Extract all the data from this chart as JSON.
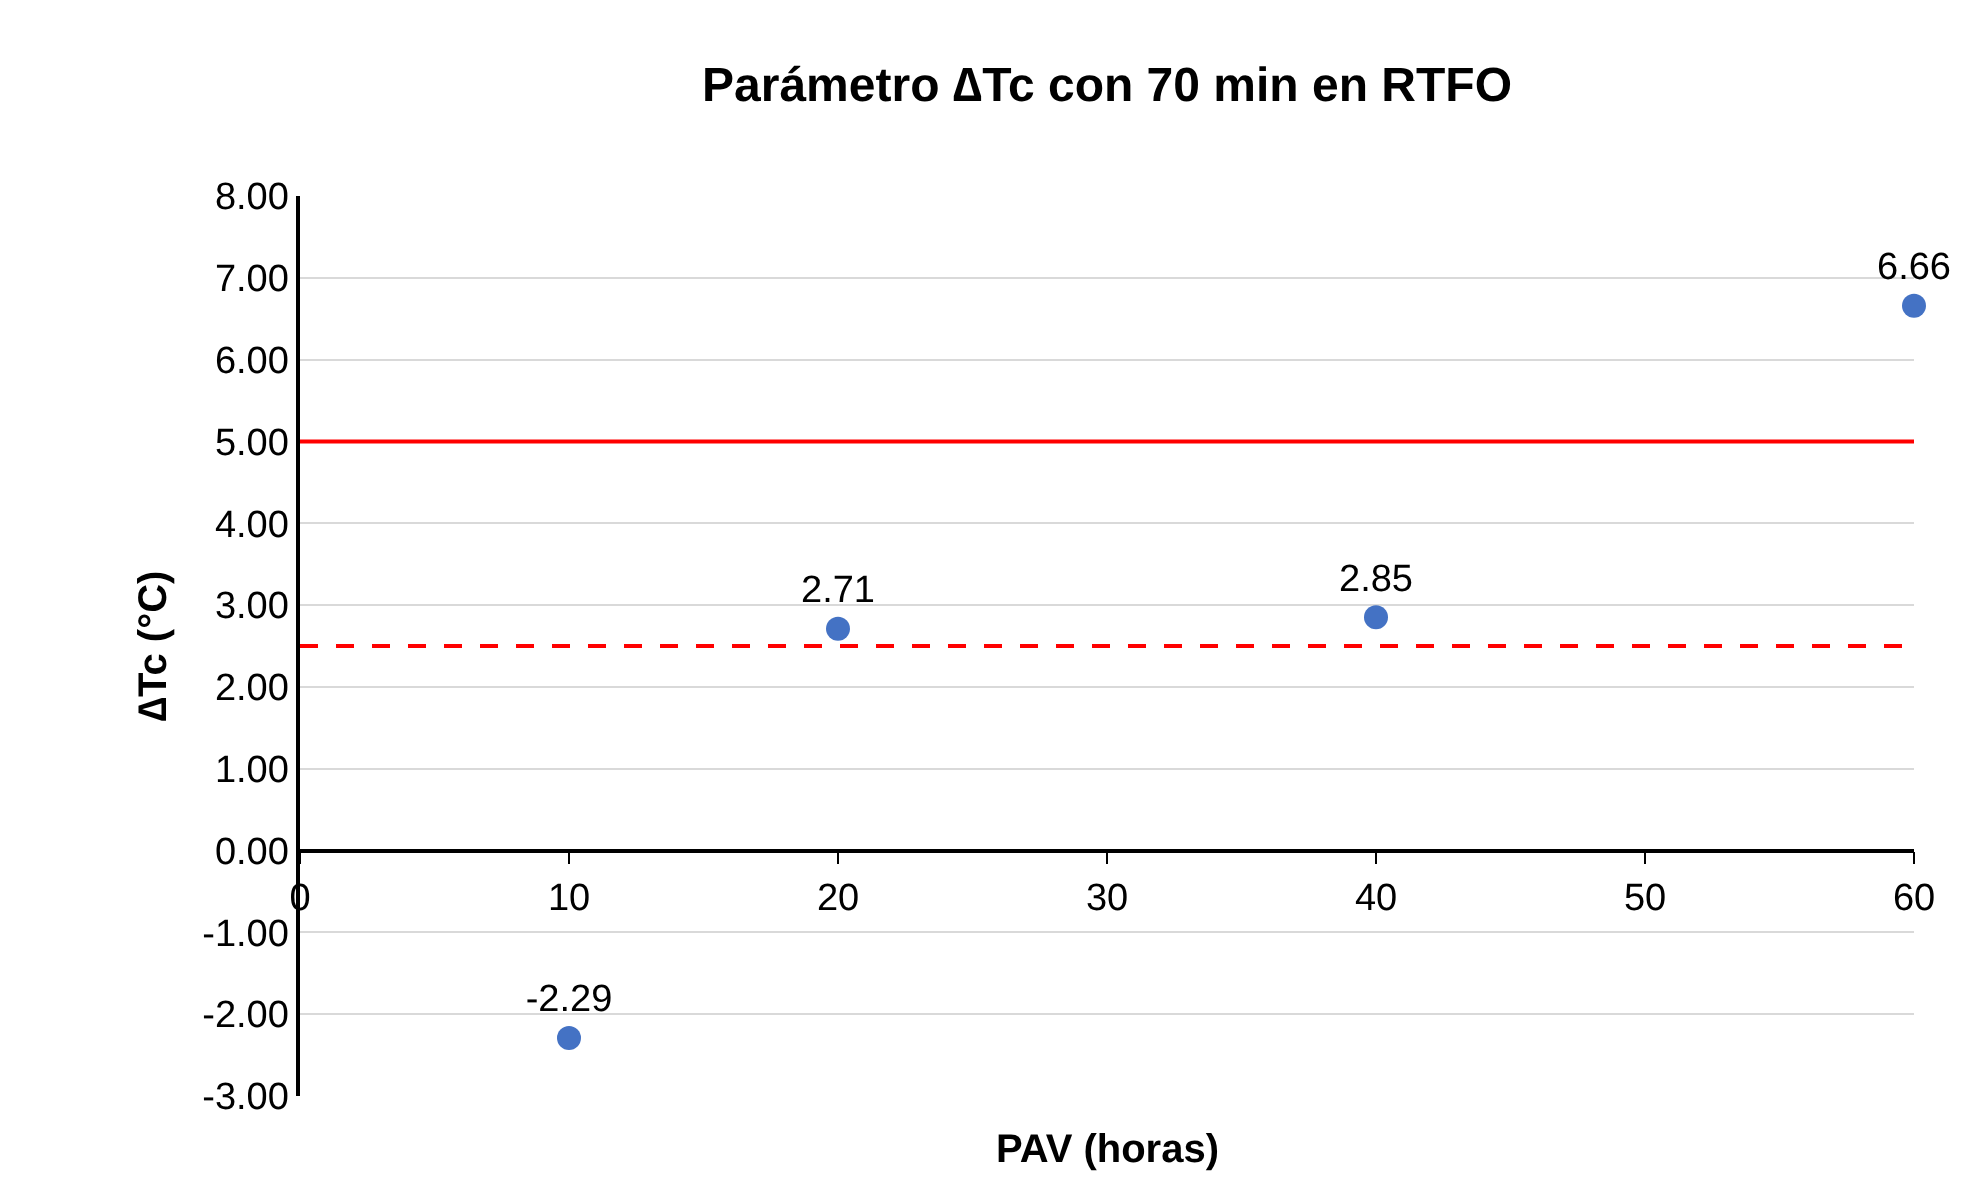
{
  "chart_data": {
    "type": "scatter",
    "title": "Parámetro ∆Tc con 70 min en RTFO",
    "xlabel": "PAV (horas)",
    "ylabel": "∆Tc (°C)",
    "x": [
      10,
      20,
      40,
      60
    ],
    "series": [
      {
        "color": "#4472c4",
        "values": [
          -2.29,
          2.71,
          2.85,
          6.66
        ]
      }
    ],
    "data_labels": true,
    "marker": "circle",
    "xlim": [
      0,
      60
    ],
    "xticks": [
      0,
      10,
      20,
      30,
      40,
      50,
      60
    ],
    "ylim": [
      -3,
      8
    ],
    "yticks": [
      {
        "value": -3,
        "label": "-3.00"
      },
      {
        "value": -2,
        "label": "-2.00"
      },
      {
        "value": -1,
        "label": "-1.00"
      },
      {
        "value": 0,
        "label": "0.00"
      },
      {
        "value": 1,
        "label": "1.00"
      },
      {
        "value": 2,
        "label": "2.00"
      },
      {
        "value": 3,
        "label": "3.00"
      },
      {
        "value": 4,
        "label": "4.00"
      },
      {
        "value": 5,
        "label": "5.00"
      },
      {
        "value": 6,
        "label": "6.00"
      },
      {
        "value": 7,
        "label": "7.00"
      },
      {
        "value": 8,
        "label": "8.00"
      }
    ],
    "grid": "y",
    "ref_lines": [
      {
        "axis": "y",
        "value": 5,
        "color": "#ff0000",
        "line_style": "solid"
      },
      {
        "axis": "y",
        "value": 2.5,
        "color": "#ff0000",
        "line_style": "dashed"
      }
    ]
  }
}
